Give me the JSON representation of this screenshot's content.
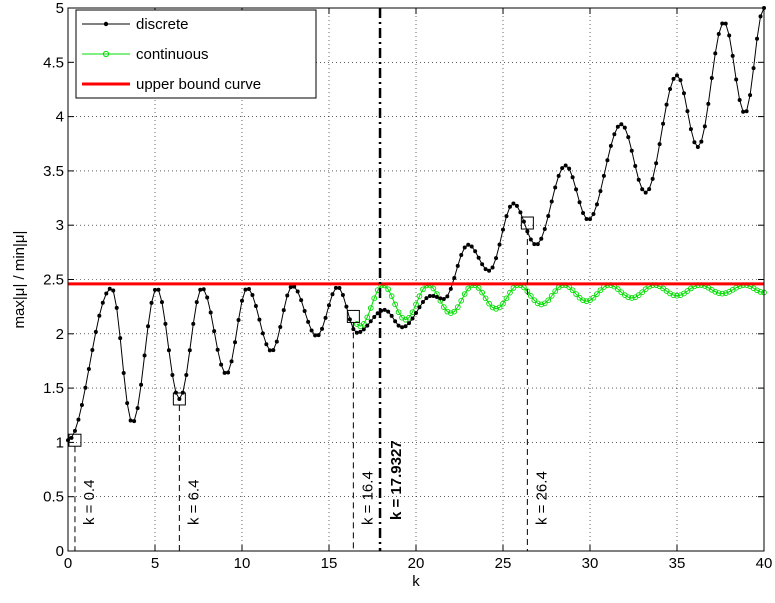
{
  "chart_data": {
    "type": "line",
    "xlabel": "k",
    "ylabel": "max|μ| / min|μ|",
    "xlim": [
      0,
      40
    ],
    "ylim": [
      0,
      5
    ],
    "xticks": [
      0,
      5,
      10,
      15,
      20,
      25,
      30,
      35,
      40
    ],
    "yticks": [
      0,
      0.5,
      1,
      1.5,
      2,
      2.5,
      3,
      3.5,
      4,
      4.5,
      5
    ],
    "xtick_labels": [
      "0",
      "5",
      "10",
      "15",
      "20",
      "25",
      "30",
      "35",
      "40"
    ],
    "ytick_labels": [
      "0",
      "0.5",
      "1",
      "1.5",
      "2",
      "2.5",
      "3",
      "3.5",
      "4",
      "4.5",
      "5"
    ],
    "grid": true,
    "legend_position": "top-left",
    "series": [
      {
        "name": "discrete",
        "color": "#000000",
        "marker": "dot",
        "model": "discrete",
        "peaks": [
          [
            2.5,
            2.42
          ],
          [
            5.1,
            2.42
          ],
          [
            7.7,
            2.42
          ],
          [
            10.3,
            2.42
          ],
          [
            12.9,
            2.44
          ],
          [
            15.5,
            2.43
          ],
          [
            18.2,
            2.22
          ],
          [
            20.9,
            2.35
          ],
          [
            23.0,
            2.82
          ],
          [
            25.6,
            3.2
          ],
          [
            28.6,
            3.55
          ],
          [
            31.8,
            3.93
          ],
          [
            35.0,
            4.38
          ],
          [
            37.7,
            4.87
          ],
          [
            40.0,
            5.0
          ]
        ],
        "troughs": [
          [
            0.0,
            1.02
          ],
          [
            3.7,
            1.18
          ],
          [
            6.4,
            1.4
          ],
          [
            9.1,
            1.63
          ],
          [
            11.7,
            1.84
          ],
          [
            14.3,
            1.98
          ],
          [
            16.6,
            2.01
          ],
          [
            19.2,
            2.06
          ],
          [
            21.6,
            2.32
          ],
          [
            24.2,
            2.58
          ],
          [
            26.9,
            2.82
          ],
          [
            29.9,
            3.05
          ],
          [
            33.2,
            3.3
          ],
          [
            36.2,
            3.72
          ],
          [
            38.9,
            4.03
          ]
        ]
      },
      {
        "name": "continuous",
        "color": "#00dd00",
        "marker": "circle",
        "model": "continuous",
        "peaks": [
          [
            2.5,
            2.42
          ],
          [
            5.1,
            2.42
          ],
          [
            7.7,
            2.42
          ],
          [
            10.3,
            2.42
          ],
          [
            12.9,
            2.44
          ],
          [
            15.5,
            2.43
          ],
          [
            18.1,
            2.45
          ],
          [
            20.7,
            2.45
          ],
          [
            23.3,
            2.45
          ],
          [
            25.9,
            2.45
          ],
          [
            28.5,
            2.45
          ],
          [
            31.1,
            2.45
          ],
          [
            33.7,
            2.45
          ],
          [
            36.3,
            2.45
          ],
          [
            38.9,
            2.45
          ]
        ],
        "troughs": [
          [
            0.0,
            1.02
          ],
          [
            3.7,
            1.18
          ],
          [
            6.4,
            1.4
          ],
          [
            9.1,
            1.63
          ],
          [
            11.7,
            1.84
          ],
          [
            14.3,
            1.98
          ],
          [
            16.8,
            2.07
          ],
          [
            19.4,
            2.13
          ],
          [
            22.0,
            2.19
          ],
          [
            24.6,
            2.23
          ],
          [
            27.2,
            2.27
          ],
          [
            29.8,
            2.3
          ],
          [
            32.4,
            2.33
          ],
          [
            35.0,
            2.35
          ],
          [
            37.6,
            2.37
          ],
          [
            40.0,
            2.38
          ]
        ]
      },
      {
        "name": "upper bound curve",
        "color": "#ff0000",
        "marker": "none",
        "x": [
          0,
          40
        ],
        "y": [
          2.46,
          2.46
        ]
      }
    ],
    "annotations": {
      "vlines": [
        {
          "x": 0.4,
          "y_top": 1.02,
          "label": "k = 0.4",
          "style": "dashed"
        },
        {
          "x": 6.4,
          "y_top": 1.4,
          "label": "k = 6.4",
          "style": "dashed"
        },
        {
          "x": 16.4,
          "y_top": 2.16,
          "label": "k = 16.4",
          "style": "dashed"
        },
        {
          "x": 26.4,
          "y_top": 3.02,
          "label": "k = 26.4",
          "style": "dashed"
        },
        {
          "x": 17.9327,
          "y_top": 5.0,
          "label": "k = 17.9327",
          "style": "dashdot-bold"
        }
      ],
      "boxes": [
        {
          "x": 0.4,
          "y": 1.02
        },
        {
          "x": 6.4,
          "y": 1.4
        },
        {
          "x": 16.4,
          "y": 2.16
        },
        {
          "x": 26.4,
          "y": 3.02
        }
      ]
    }
  }
}
